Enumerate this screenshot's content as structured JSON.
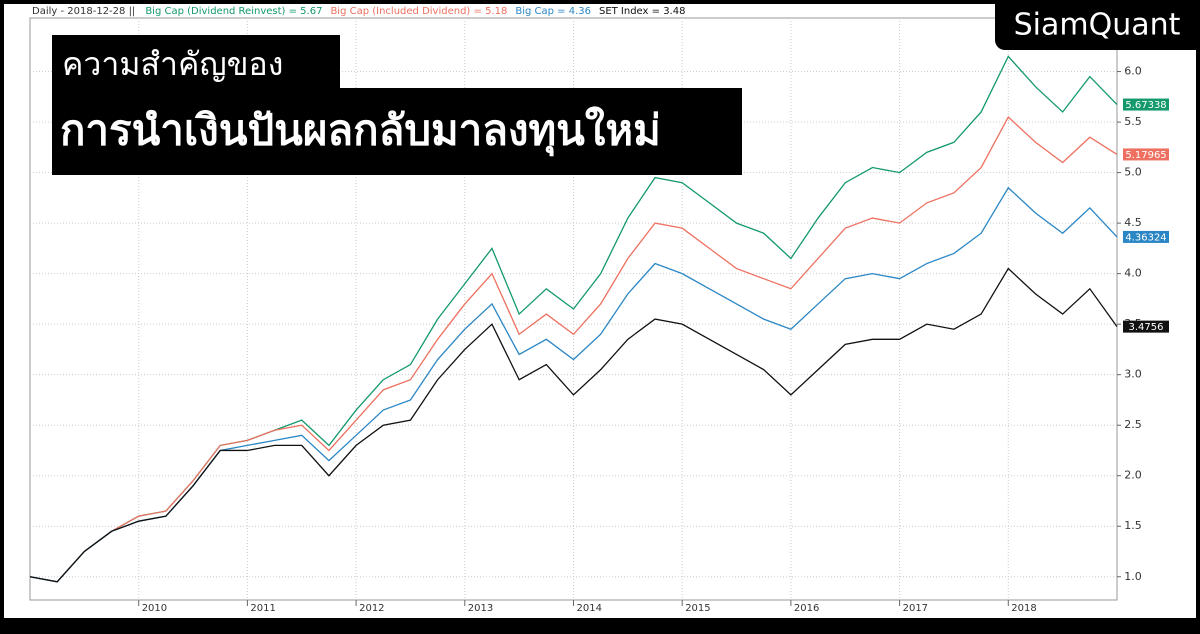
{
  "chart_data": {
    "type": "line",
    "header": "Daily - 2018-12-28 ||",
    "brand": "SiamQuant",
    "title_lines": [
      "ความสำคัญของ",
      "การนำเงินปันผลกลับมาลงทุนใหม่"
    ],
    "x": [
      2009,
      2009.25,
      2009.5,
      2009.75,
      2010,
      2010.25,
      2010.5,
      2010.75,
      2011,
      2011.25,
      2011.5,
      2011.75,
      2012,
      2012.25,
      2012.5,
      2012.75,
      2013,
      2013.25,
      2013.5,
      2013.75,
      2014,
      2014.25,
      2014.5,
      2014.75,
      2015,
      2015.25,
      2015.5,
      2015.75,
      2016,
      2016.25,
      2016.5,
      2016.75,
      2017,
      2017.25,
      2017.5,
      2017.75,
      2018,
      2018.25,
      2018.5,
      2018.75,
      2019
    ],
    "xlim": [
      2009,
      2019
    ],
    "xticks": [
      2010,
      2011,
      2012,
      2013,
      2014,
      2015,
      2016,
      2017,
      2018
    ],
    "ylim": [
      0.77,
      6.53
    ],
    "yticks": [
      {
        "value": 1,
        "label": "1.0"
      },
      {
        "value": 1.5,
        "label": "1.5"
      },
      {
        "value": 2,
        "label": "2.0"
      },
      {
        "value": 2.5,
        "label": "2.5"
      },
      {
        "value": 3,
        "label": "3.0"
      },
      {
        "value": 3.5,
        "label": "3.5"
      },
      {
        "value": 4,
        "label": "4.0"
      },
      {
        "value": 4.5,
        "label": "4.5"
      },
      {
        "value": 5,
        "label": "5.0"
      },
      {
        "value": 5.5,
        "label": "5.5"
      },
      {
        "value": 6,
        "label": "6.0"
      }
    ],
    "grid": true,
    "series": [
      {
        "name": "Big Cap (Dividend Reinvest) = 5.67",
        "color": "#13996b",
        "values": [
          1.0,
          0.95,
          1.25,
          1.45,
          1.6,
          1.65,
          1.95,
          2.3,
          2.35,
          2.45,
          2.55,
          2.3,
          2.65,
          2.95,
          3.1,
          3.55,
          3.9,
          4.25,
          3.6,
          3.85,
          3.65,
          4.0,
          4.55,
          4.95,
          4.9,
          4.7,
          4.5,
          4.4,
          4.15,
          4.55,
          4.9,
          5.05,
          5.0,
          5.2,
          5.3,
          5.6,
          6.15,
          5.85,
          5.6,
          5.95,
          5.67338
        ]
      },
      {
        "name": "Big Cap (Included Dividend) = 5.18",
        "color": "#ee7060",
        "values": [
          1.0,
          0.95,
          1.25,
          1.45,
          1.6,
          1.65,
          1.95,
          2.3,
          2.35,
          2.45,
          2.5,
          2.25,
          2.55,
          2.85,
          2.95,
          3.35,
          3.7,
          4.0,
          3.4,
          3.6,
          3.4,
          3.7,
          4.15,
          4.5,
          4.45,
          4.25,
          4.05,
          3.95,
          3.85,
          4.15,
          4.45,
          4.55,
          4.5,
          4.7,
          4.8,
          5.05,
          5.55,
          5.3,
          5.1,
          5.35,
          5.17965
        ]
      },
      {
        "name": "Big Cap = 4.36",
        "color": "#2a86c4",
        "values": [
          1.0,
          0.95,
          1.25,
          1.45,
          1.55,
          1.6,
          1.9,
          2.25,
          2.3,
          2.35,
          2.4,
          2.15,
          2.4,
          2.65,
          2.75,
          3.15,
          3.45,
          3.7,
          3.2,
          3.35,
          3.15,
          3.4,
          3.8,
          4.1,
          4.0,
          3.85,
          3.7,
          3.55,
          3.45,
          3.7,
          3.95,
          4.0,
          3.95,
          4.1,
          4.2,
          4.4,
          4.85,
          4.6,
          4.4,
          4.65,
          4.36324
        ]
      },
      {
        "name": "SET Index = 3.48",
        "color": "#111111",
        "values": [
          1.0,
          0.95,
          1.25,
          1.45,
          1.55,
          1.6,
          1.9,
          2.25,
          2.25,
          2.3,
          2.3,
          2.0,
          2.3,
          2.5,
          2.55,
          2.95,
          3.25,
          3.5,
          2.95,
          3.1,
          2.8,
          3.05,
          3.35,
          3.55,
          3.5,
          3.35,
          3.2,
          3.05,
          2.8,
          3.05,
          3.3,
          3.35,
          3.35,
          3.5,
          3.45,
          3.6,
          4.05,
          3.8,
          3.6,
          3.85,
          3.4756
        ]
      }
    ]
  }
}
